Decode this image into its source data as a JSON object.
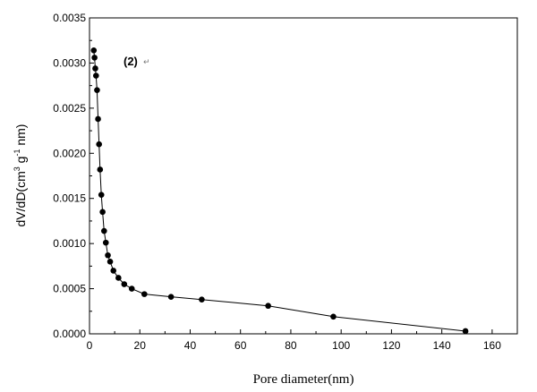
{
  "chart_data": {
    "type": "line",
    "title": "",
    "xlabel": "Pore diameter(nm)",
    "ylabel": {
      "prefix": "dV/dD(cm",
      "sup1": "3",
      "mid": "g",
      "sup2": "-1",
      "suffix": "nm)"
    },
    "annotation": "(2)",
    "annotation_mark": "↵",
    "xlim": [
      0,
      170
    ],
    "ylim": [
      0.0,
      0.0035
    ],
    "xticks": [
      "0",
      "20",
      "40",
      "60",
      "80",
      "100",
      "120",
      "140",
      "160"
    ],
    "yticks": [
      "0.0000",
      "0.0005",
      "0.0010",
      "0.0015",
      "0.0020",
      "0.0025",
      "0.0030",
      "0.0035"
    ],
    "grid": false,
    "marker": "circle",
    "line_color": "#000000",
    "series": [
      {
        "x": [
          1.7,
          2.0,
          2.3,
          2.6,
          3.0,
          3.4,
          3.8,
          4.2,
          4.7,
          5.2,
          5.8,
          6.5,
          7.3,
          8.2,
          9.5,
          11.5,
          13.8,
          16.8,
          21.8,
          32.4,
          44.6,
          71.0,
          96.9,
          149.4
        ],
        "y": [
          0.00314,
          0.00306,
          0.00294,
          0.00286,
          0.0027,
          0.00238,
          0.0021,
          0.00182,
          0.00154,
          0.00135,
          0.00114,
          0.00101,
          0.00087,
          0.0008,
          0.0007,
          0.00062,
          0.00055,
          0.0005,
          0.00044,
          0.00041,
          0.00038,
          0.00031,
          0.00019,
          3e-05
        ]
      }
    ]
  }
}
